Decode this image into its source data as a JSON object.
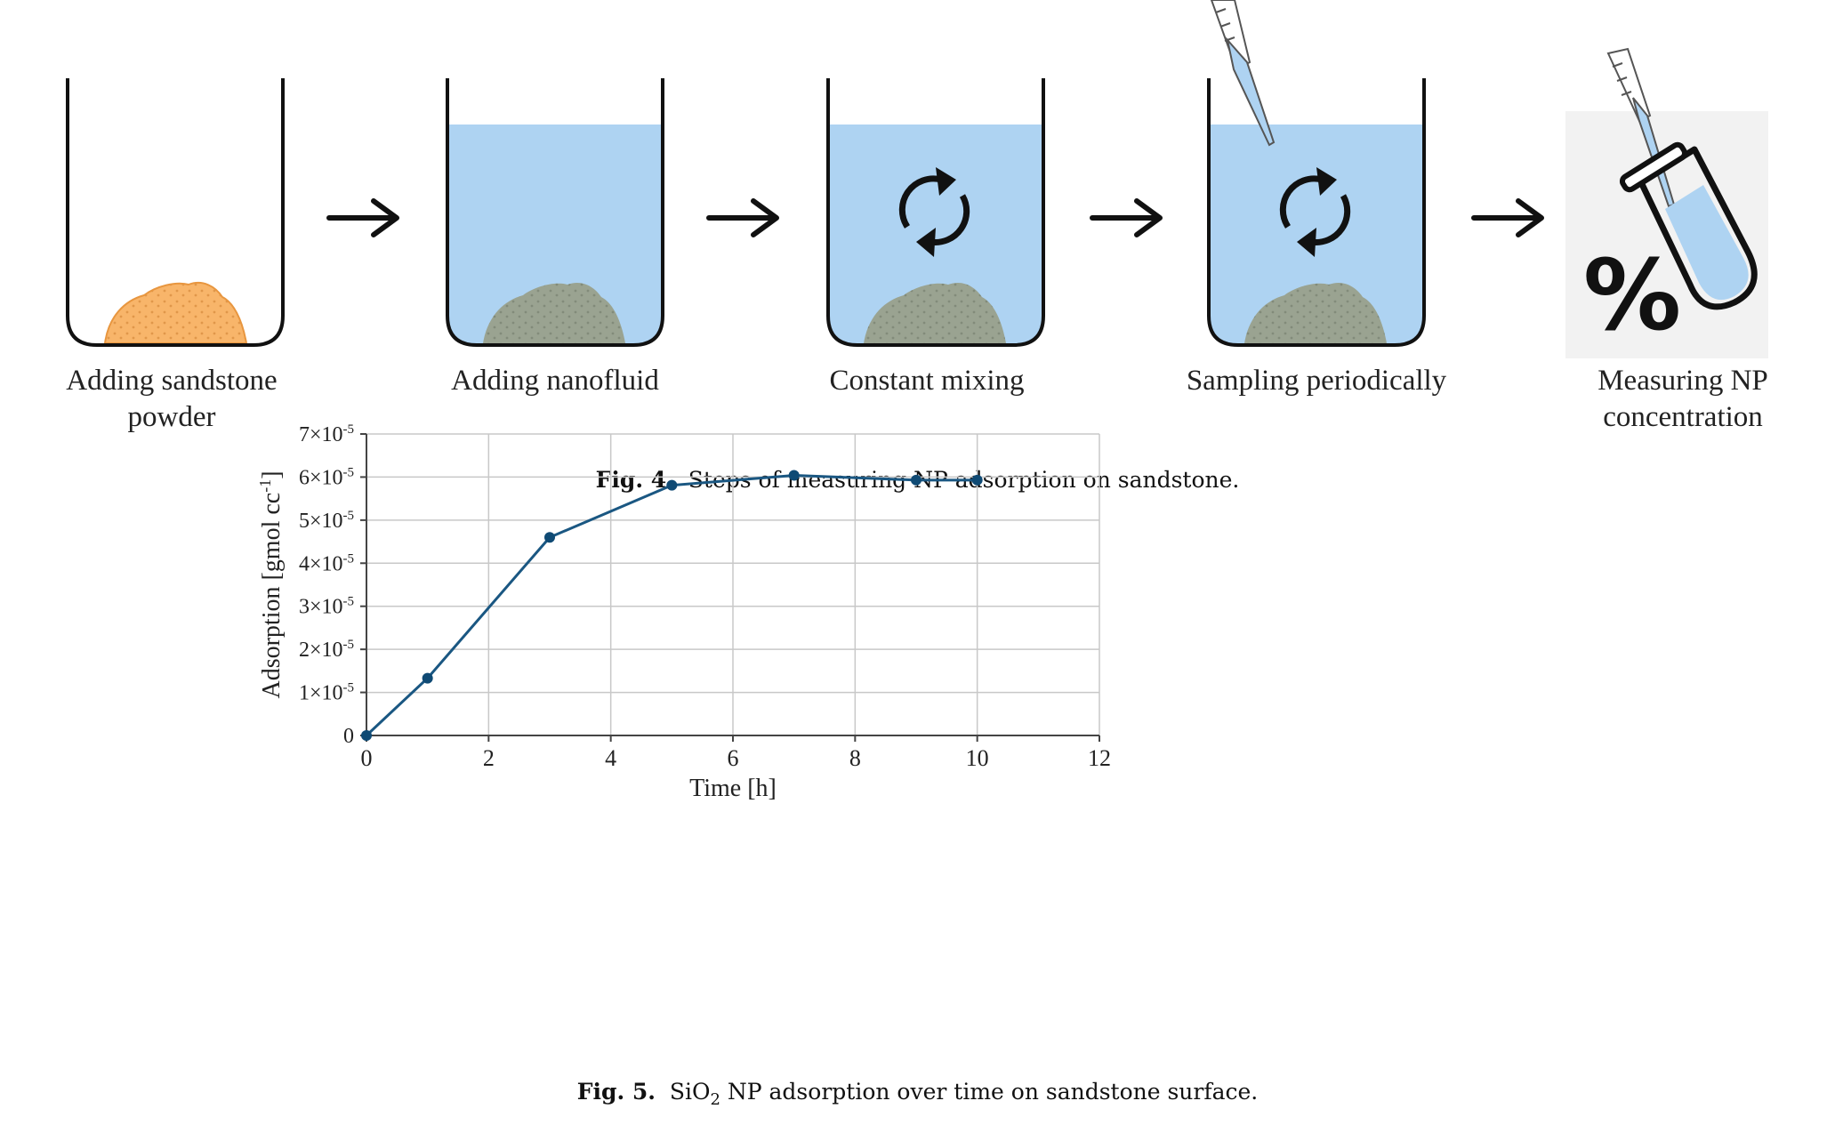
{
  "figure4": {
    "steps": [
      {
        "label_line1": "Adding sandstone",
        "label_line2": "powder"
      },
      {
        "label_line1": "Adding nanofluid",
        "label_line2": ""
      },
      {
        "label_line1": "Constant mixing",
        "label_line2": ""
      },
      {
        "label_line1": "Sampling periodically",
        "label_line2": ""
      },
      {
        "label_line1": "Measuring NP",
        "label_line2": "concentration"
      }
    ],
    "percent_symbol": "%",
    "caption_label": "Fig. 4.",
    "caption_text": "Steps of measuring NP adsorption on sandstone."
  },
  "colors": {
    "liquid": "#aed3f2",
    "sand_dry": "#f8b56a",
    "sand_wet": "#9aa391",
    "line": "#1a5782",
    "marker": "#0f4a74",
    "grid": "#c8c8c8"
  },
  "figure5": {
    "caption_label": "Fig. 5.",
    "caption_pre": "SiO",
    "caption_sub": "2",
    "caption_post": " NP adsorption over time on sandstone surface."
  },
  "chart_data": {
    "type": "line",
    "title": "",
    "xlabel": "Time [h]",
    "ylabel": "Adsorption [gmol cc",
    "ylabel_sup": "-1",
    "ylabel_end": "]",
    "xlim": [
      0,
      12
    ],
    "ylim": [
      0,
      7e-05
    ],
    "x_ticks": [
      0,
      2,
      4,
      6,
      8,
      10,
      12
    ],
    "y_ticks": [
      {
        "value": 0,
        "base": "0",
        "exp": ""
      },
      {
        "value": 1e-05,
        "base": "1×10",
        "exp": "-5"
      },
      {
        "value": 2e-05,
        "base": "2×10",
        "exp": "-5"
      },
      {
        "value": 3e-05,
        "base": "3×10",
        "exp": "-5"
      },
      {
        "value": 4e-05,
        "base": "4×10",
        "exp": "-5"
      },
      {
        "value": 5e-05,
        "base": "5×10",
        "exp": "-5"
      },
      {
        "value": 6e-05,
        "base": "6×10",
        "exp": "-5"
      },
      {
        "value": 7e-05,
        "base": "7×10",
        "exp": "-5"
      }
    ],
    "grid": true,
    "series": [
      {
        "x": [
          0,
          1,
          3,
          5,
          7,
          9,
          10
        ],
        "y": [
          0,
          1.33e-05,
          4.6e-05,
          5.81e-05,
          6.04e-05,
          5.93e-05,
          5.93e-05
        ]
      }
    ]
  }
}
